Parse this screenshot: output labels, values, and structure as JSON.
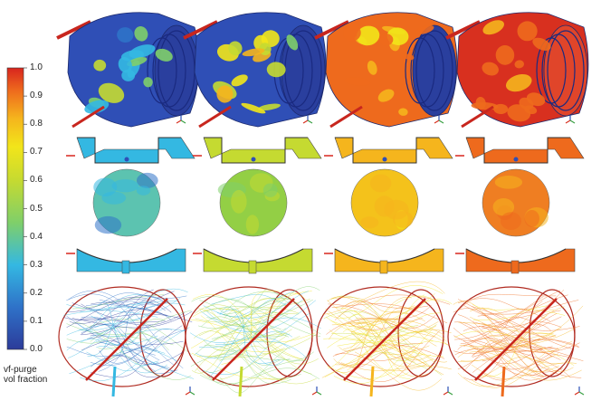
{
  "colorbar": {
    "title_line1": "vf-purge",
    "title_line2": "vol fraction",
    "ticks": [
      "1.0",
      "0.9",
      "0.8",
      "0.7",
      "0.6",
      "0.5",
      "0.4",
      "0.3",
      "0.2",
      "0.1",
      "0.0"
    ],
    "colors": [
      "#2c3b9a",
      "#2f72c8",
      "#34b8e2",
      "#7fcf6a",
      "#c5da31",
      "#f2e51a",
      "#f5b51d",
      "#ee6a1d",
      "#d8251e"
    ]
  },
  "panels": [
    {
      "fill": 0.25,
      "base": "#63c7a3",
      "dome_tint": "#5cc3b0"
    },
    {
      "fill": 0.5,
      "base": "#a8d43a",
      "dome_tint": "#93cf45"
    },
    {
      "fill": 0.75,
      "base": "#f2c41d",
      "dome_tint": "#f4c21b"
    },
    {
      "fill": 0.92,
      "base": "#ee7a1f",
      "dome_tint": "#ef7e22"
    }
  ]
}
